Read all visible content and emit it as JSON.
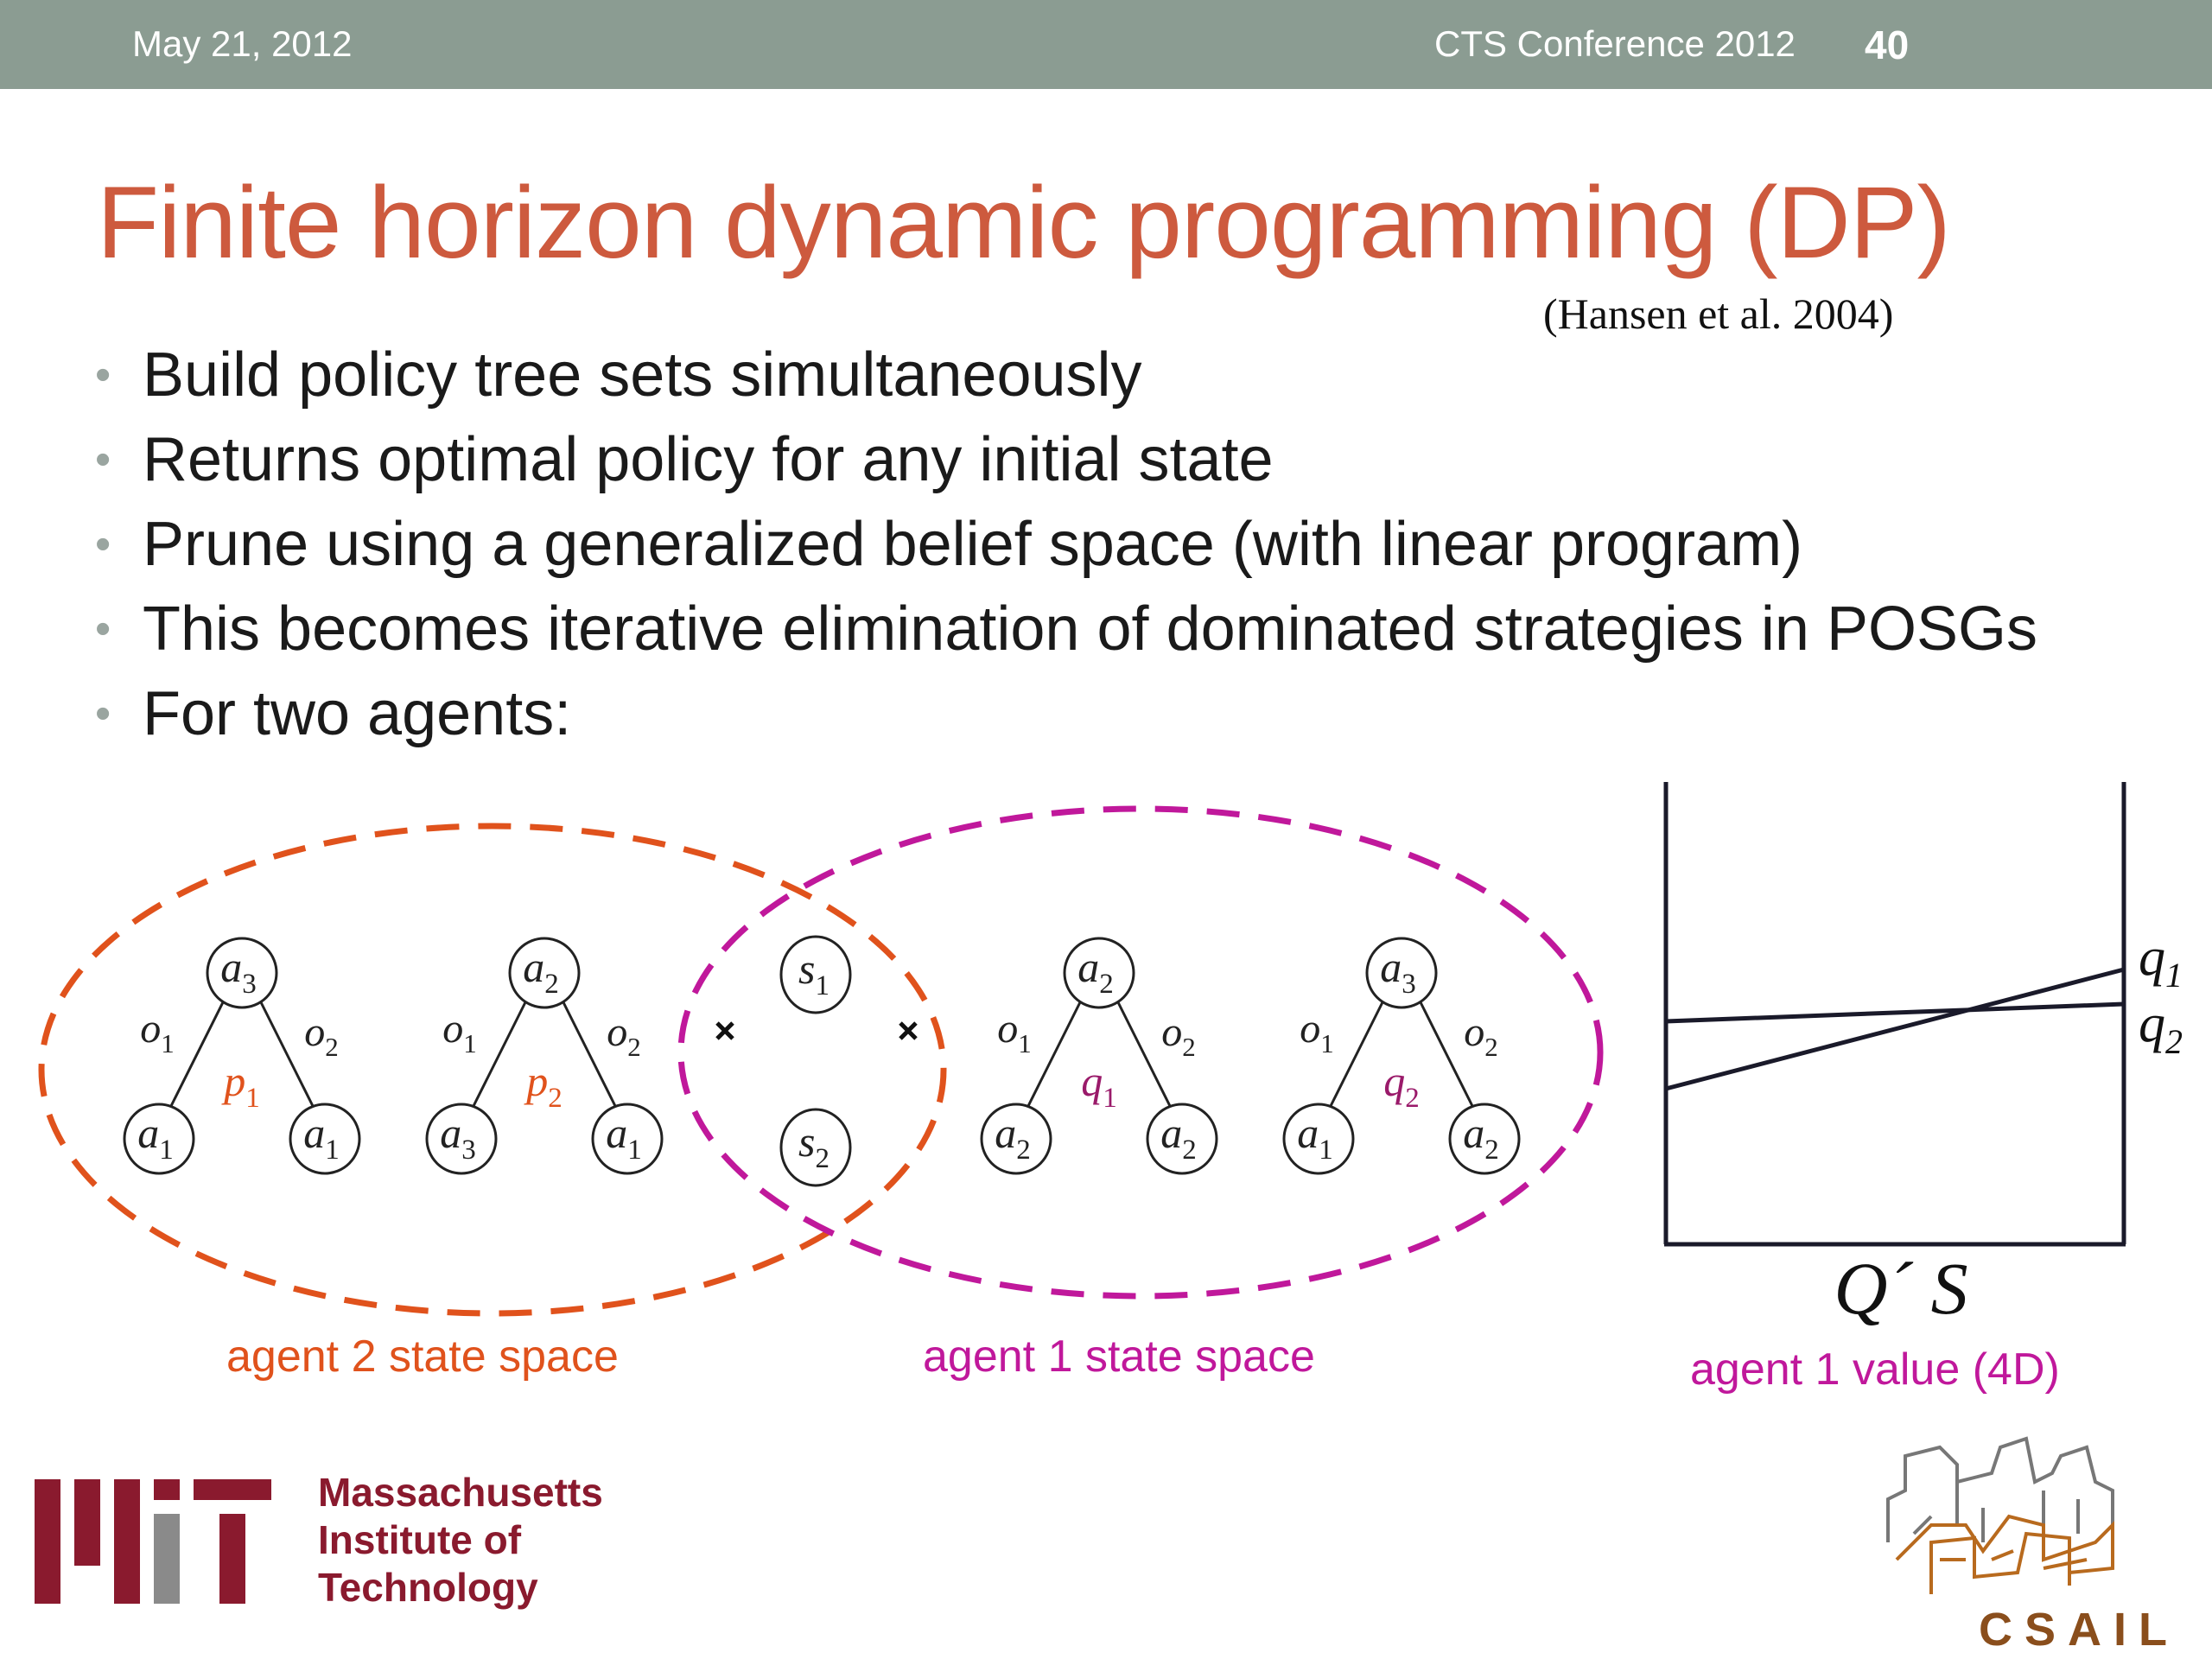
{
  "header": {
    "date": "May 21, 2012",
    "conference": "CTS Conference 2012",
    "page_number": "40"
  },
  "slide": {
    "title": "Finite horizon dynamic programming (DP)",
    "citation": "(Hansen et al. 2004)",
    "bullets": [
      "Build policy tree sets simultaneously",
      "Returns optimal policy for any initial state",
      "Prune using a generalized belief space (with linear program)",
      "This becomes iterative elimination of dominated strategies in POSGs",
      "For two agents:"
    ]
  },
  "figure": {
    "trees": [
      {
        "root": "a3",
        "left": "a1",
        "right": "a1",
        "label": "p1"
      },
      {
        "root": "a2",
        "left": "a3",
        "right": "a1",
        "label": "p2"
      },
      {
        "root": "a2",
        "left": "a2",
        "right": "a2",
        "label": "q1"
      },
      {
        "root": "a3",
        "left": "a1",
        "right": "a2",
        "label": "q2"
      }
    ],
    "edge_labels": [
      "o1",
      "o2"
    ],
    "states": [
      "s1",
      "s2"
    ],
    "captions": {
      "agent2": "agent 2 state space",
      "agent1": "agent 1 state space",
      "value": "agent 1 value (4D)"
    },
    "value_plot_axis": "Q´ S",
    "value_plot_lines": [
      "q1",
      "q2"
    ],
    "colors": {
      "agent2": "#e0521c",
      "agent1": "#c0189b",
      "title": "#cd5a3e",
      "mit": "#8a1a2e"
    }
  },
  "logos": {
    "mit_text": [
      "Massachusetts",
      "Institute of",
      "Technology"
    ],
    "csail_text": "CSAIL"
  }
}
